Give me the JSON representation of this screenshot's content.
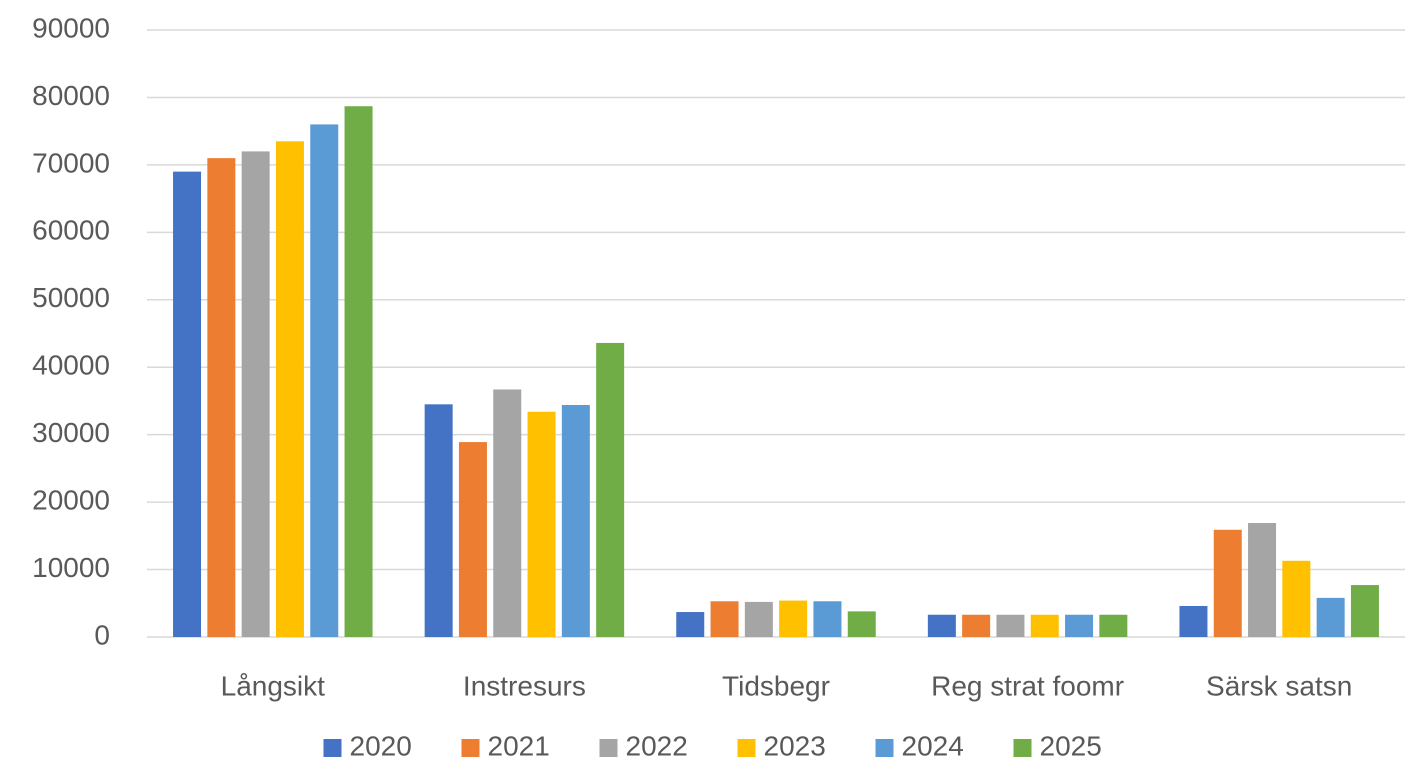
{
  "chart_data": {
    "type": "bar",
    "categories": [
      "Långsikt",
      "Instresurs",
      "Tidsbegr",
      "Reg strat foomr",
      "Särsk satsn"
    ],
    "series": [
      {
        "name": "2020",
        "color": "#4472c4",
        "values": [
          69000,
          34500,
          3700,
          3300,
          4600
        ]
      },
      {
        "name": "2021",
        "color": "#ed7d31",
        "values": [
          71000,
          28900,
          5300,
          3300,
          15900
        ]
      },
      {
        "name": "2022",
        "color": "#a5a5a5",
        "values": [
          72000,
          36700,
          5200,
          3300,
          16900
        ]
      },
      {
        "name": "2023",
        "color": "#ffc000",
        "values": [
          73500,
          33400,
          5400,
          3300,
          11300
        ]
      },
      {
        "name": "2024",
        "color": "#5b9bd5",
        "values": [
          76000,
          34400,
          5300,
          3300,
          5800
        ]
      },
      {
        "name": "2025",
        "color": "#70ad47",
        "values": [
          78700,
          43600,
          3800,
          3300,
          7700
        ]
      }
    ],
    "ylim": [
      0,
      90000
    ],
    "yticks": [
      0,
      10000,
      20000,
      30000,
      40000,
      50000,
      60000,
      70000,
      80000,
      90000
    ],
    "grid": true,
    "legend": "bottom"
  }
}
